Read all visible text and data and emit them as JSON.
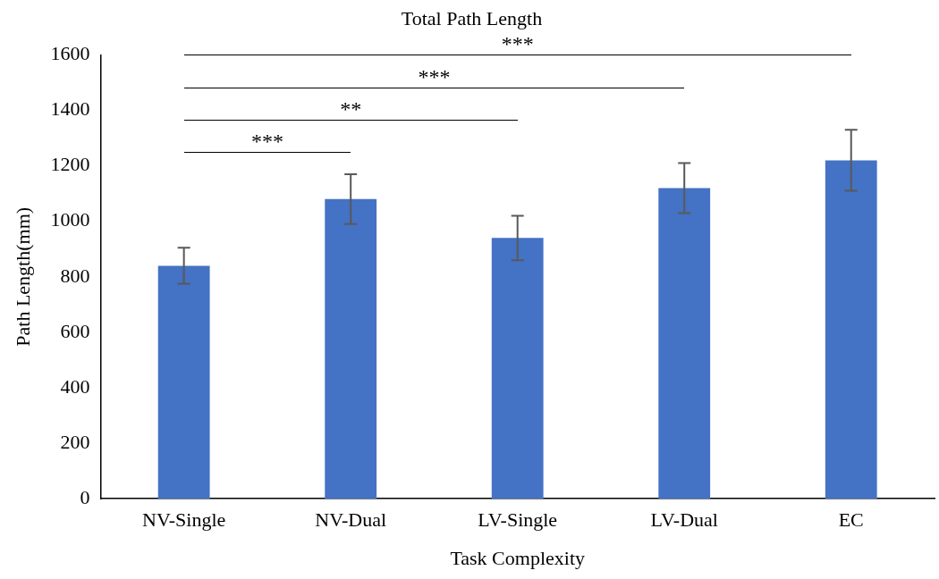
{
  "chart_data": {
    "type": "bar",
    "title": "Total Path Length",
    "xlabel": "Task Complexity",
    "ylabel": "Path Length(mm)",
    "categories": [
      "NV-Single",
      "NV-Dual",
      "LV-Single",
      "LV-Dual",
      "EC"
    ],
    "values": [
      840,
      1080,
      940,
      1120,
      1220
    ],
    "errors": [
      65,
      90,
      80,
      90,
      110
    ],
    "color": "#4472c4",
    "ylim": [
      0,
      1600
    ],
    "yticks": [
      0,
      200,
      400,
      600,
      800,
      1000,
      1200,
      1400,
      1600
    ],
    "grid": false,
    "legend": false,
    "annotations": [
      "***",
      "**",
      "***",
      "***"
    ]
  }
}
